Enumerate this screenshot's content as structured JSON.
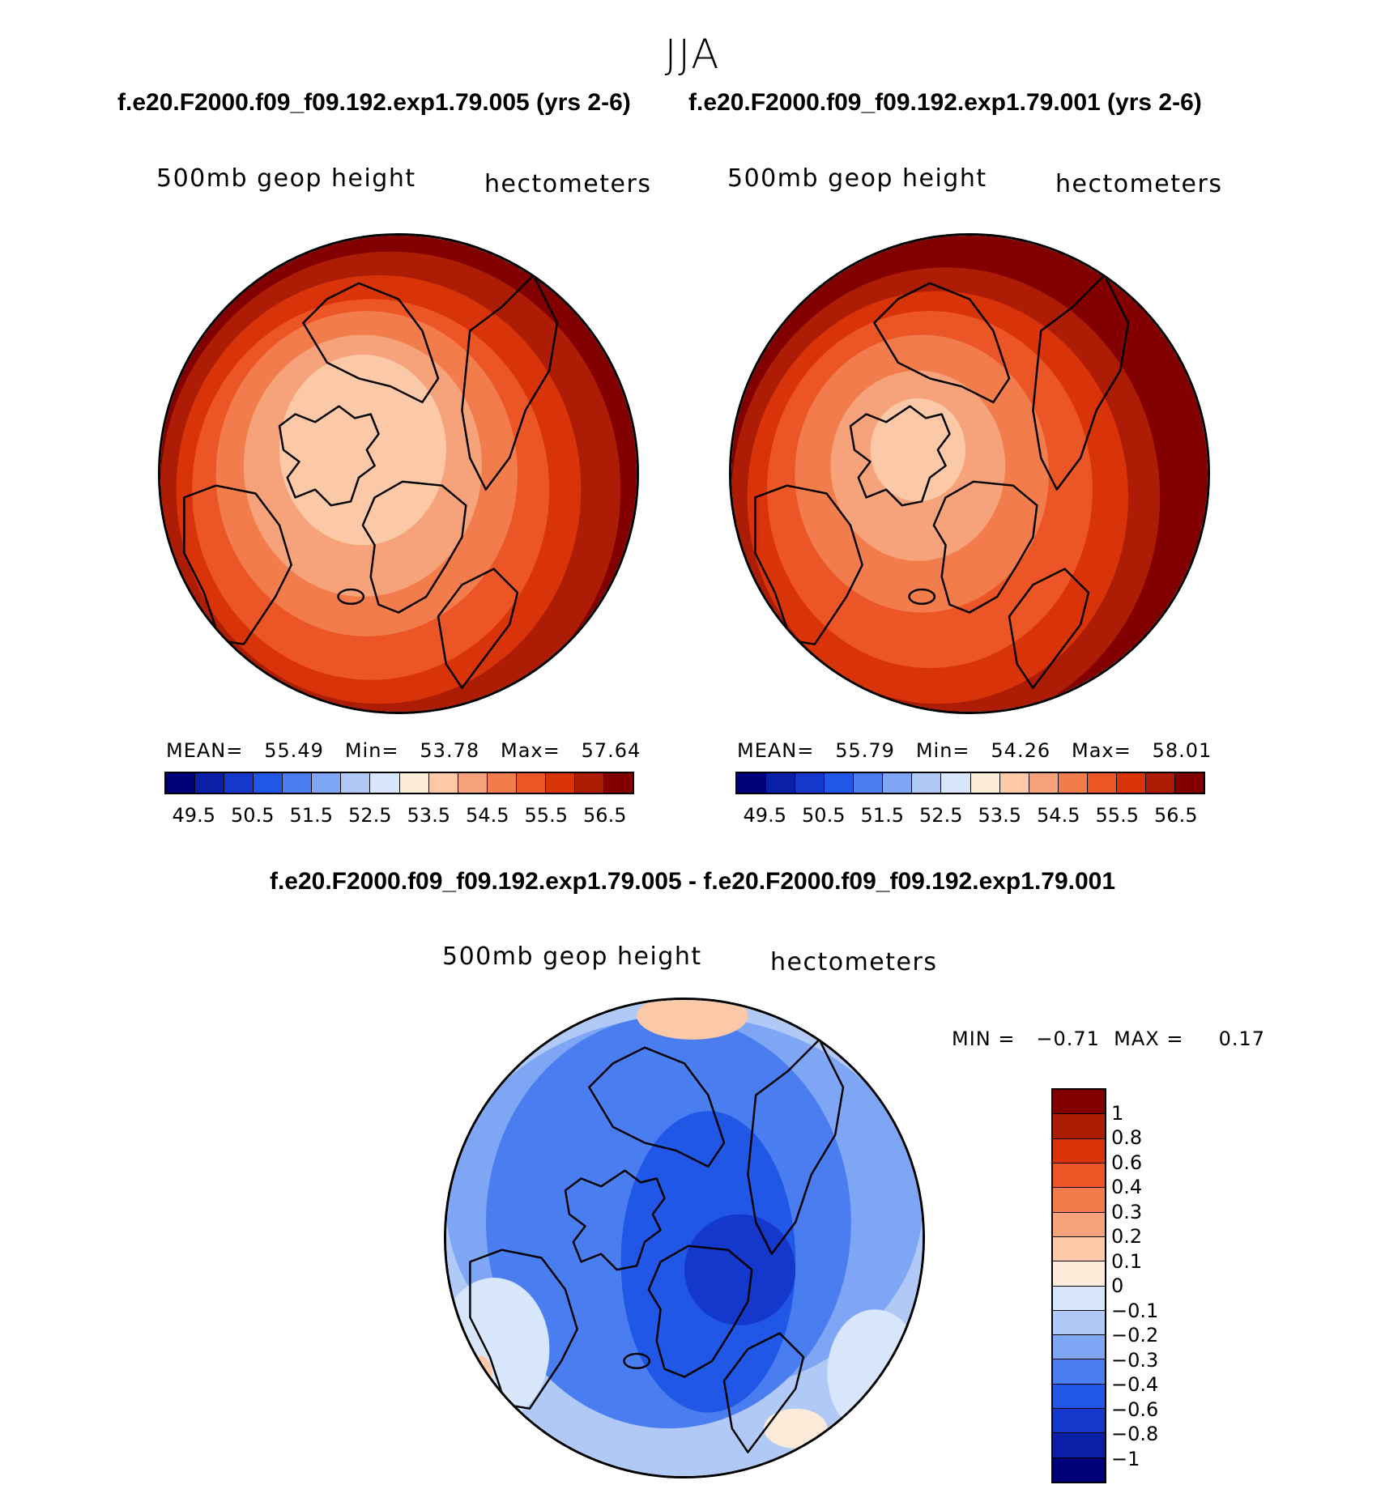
{
  "figure": {
    "season": "JJA",
    "run_a_title": "f.e20.F2000.f09_f09.192.exp1.79.005 (yrs 2-6)",
    "run_b_title": "f.e20.F2000.f09_f09.192.exp1.79.001 (yrs 2-6)",
    "diff_title": "f.e20.F2000.f09_f09.192.exp1.79.005 - f.e20.F2000.f09_f09.192.exp1.79.001"
  },
  "panels": [
    {
      "variable": "500mb geop height",
      "units": "hectometers",
      "stats": "MEAN=   55.49   Min=   53.78   Max=   57.64",
      "mean": 55.49,
      "min": 53.78,
      "max": 57.64
    },
    {
      "variable": "500mb geop height",
      "units": "hectometers",
      "stats": "MEAN=   55.79   Min=   54.26   Max=   58.01",
      "mean": 55.79,
      "min": 54.26,
      "max": 58.01
    },
    {
      "variable": "500mb geop height",
      "units": "hectometers",
      "stats": "MIN =   −0.71  MAX =     0.17",
      "mean": null,
      "min": -0.71,
      "max": 0.17
    }
  ],
  "colorbars": {
    "absolute": {
      "colors": [
        "#00007a",
        "#0a1fa8",
        "#1437cc",
        "#2157e6",
        "#4a7ef0",
        "#7fa5f5",
        "#b0c9f7",
        "#d8e6fb",
        "#fdebd9",
        "#fbc9a8",
        "#f6a27a",
        "#f27c4c",
        "#ec5525",
        "#d93409",
        "#ad1d05",
        "#820000"
      ],
      "tick_labels": [
        "49.5",
        "50.5",
        "51.5",
        "52.5",
        "53.5",
        "54.5",
        "55.5",
        "56.5"
      ]
    },
    "difference": {
      "colors": [
        "#820000",
        "#ad1d05",
        "#d93409",
        "#ec5525",
        "#f27c4c",
        "#f6a27a",
        "#fbc9a8",
        "#fdebd9",
        "#d8e6fb",
        "#b0c9f7",
        "#7fa5f5",
        "#4a7ef0",
        "#2157e6",
        "#1437cc",
        "#0a1fa8",
        "#00007a"
      ],
      "tick_labels": [
        "1",
        "0.8",
        "0.6",
        "0.4",
        "0.3",
        "0.2",
        "0.1",
        "0",
        "−0.1",
        "−0.2",
        "−0.3",
        "−0.4",
        "−0.6",
        "−0.8",
        "−1"
      ]
    }
  }
}
